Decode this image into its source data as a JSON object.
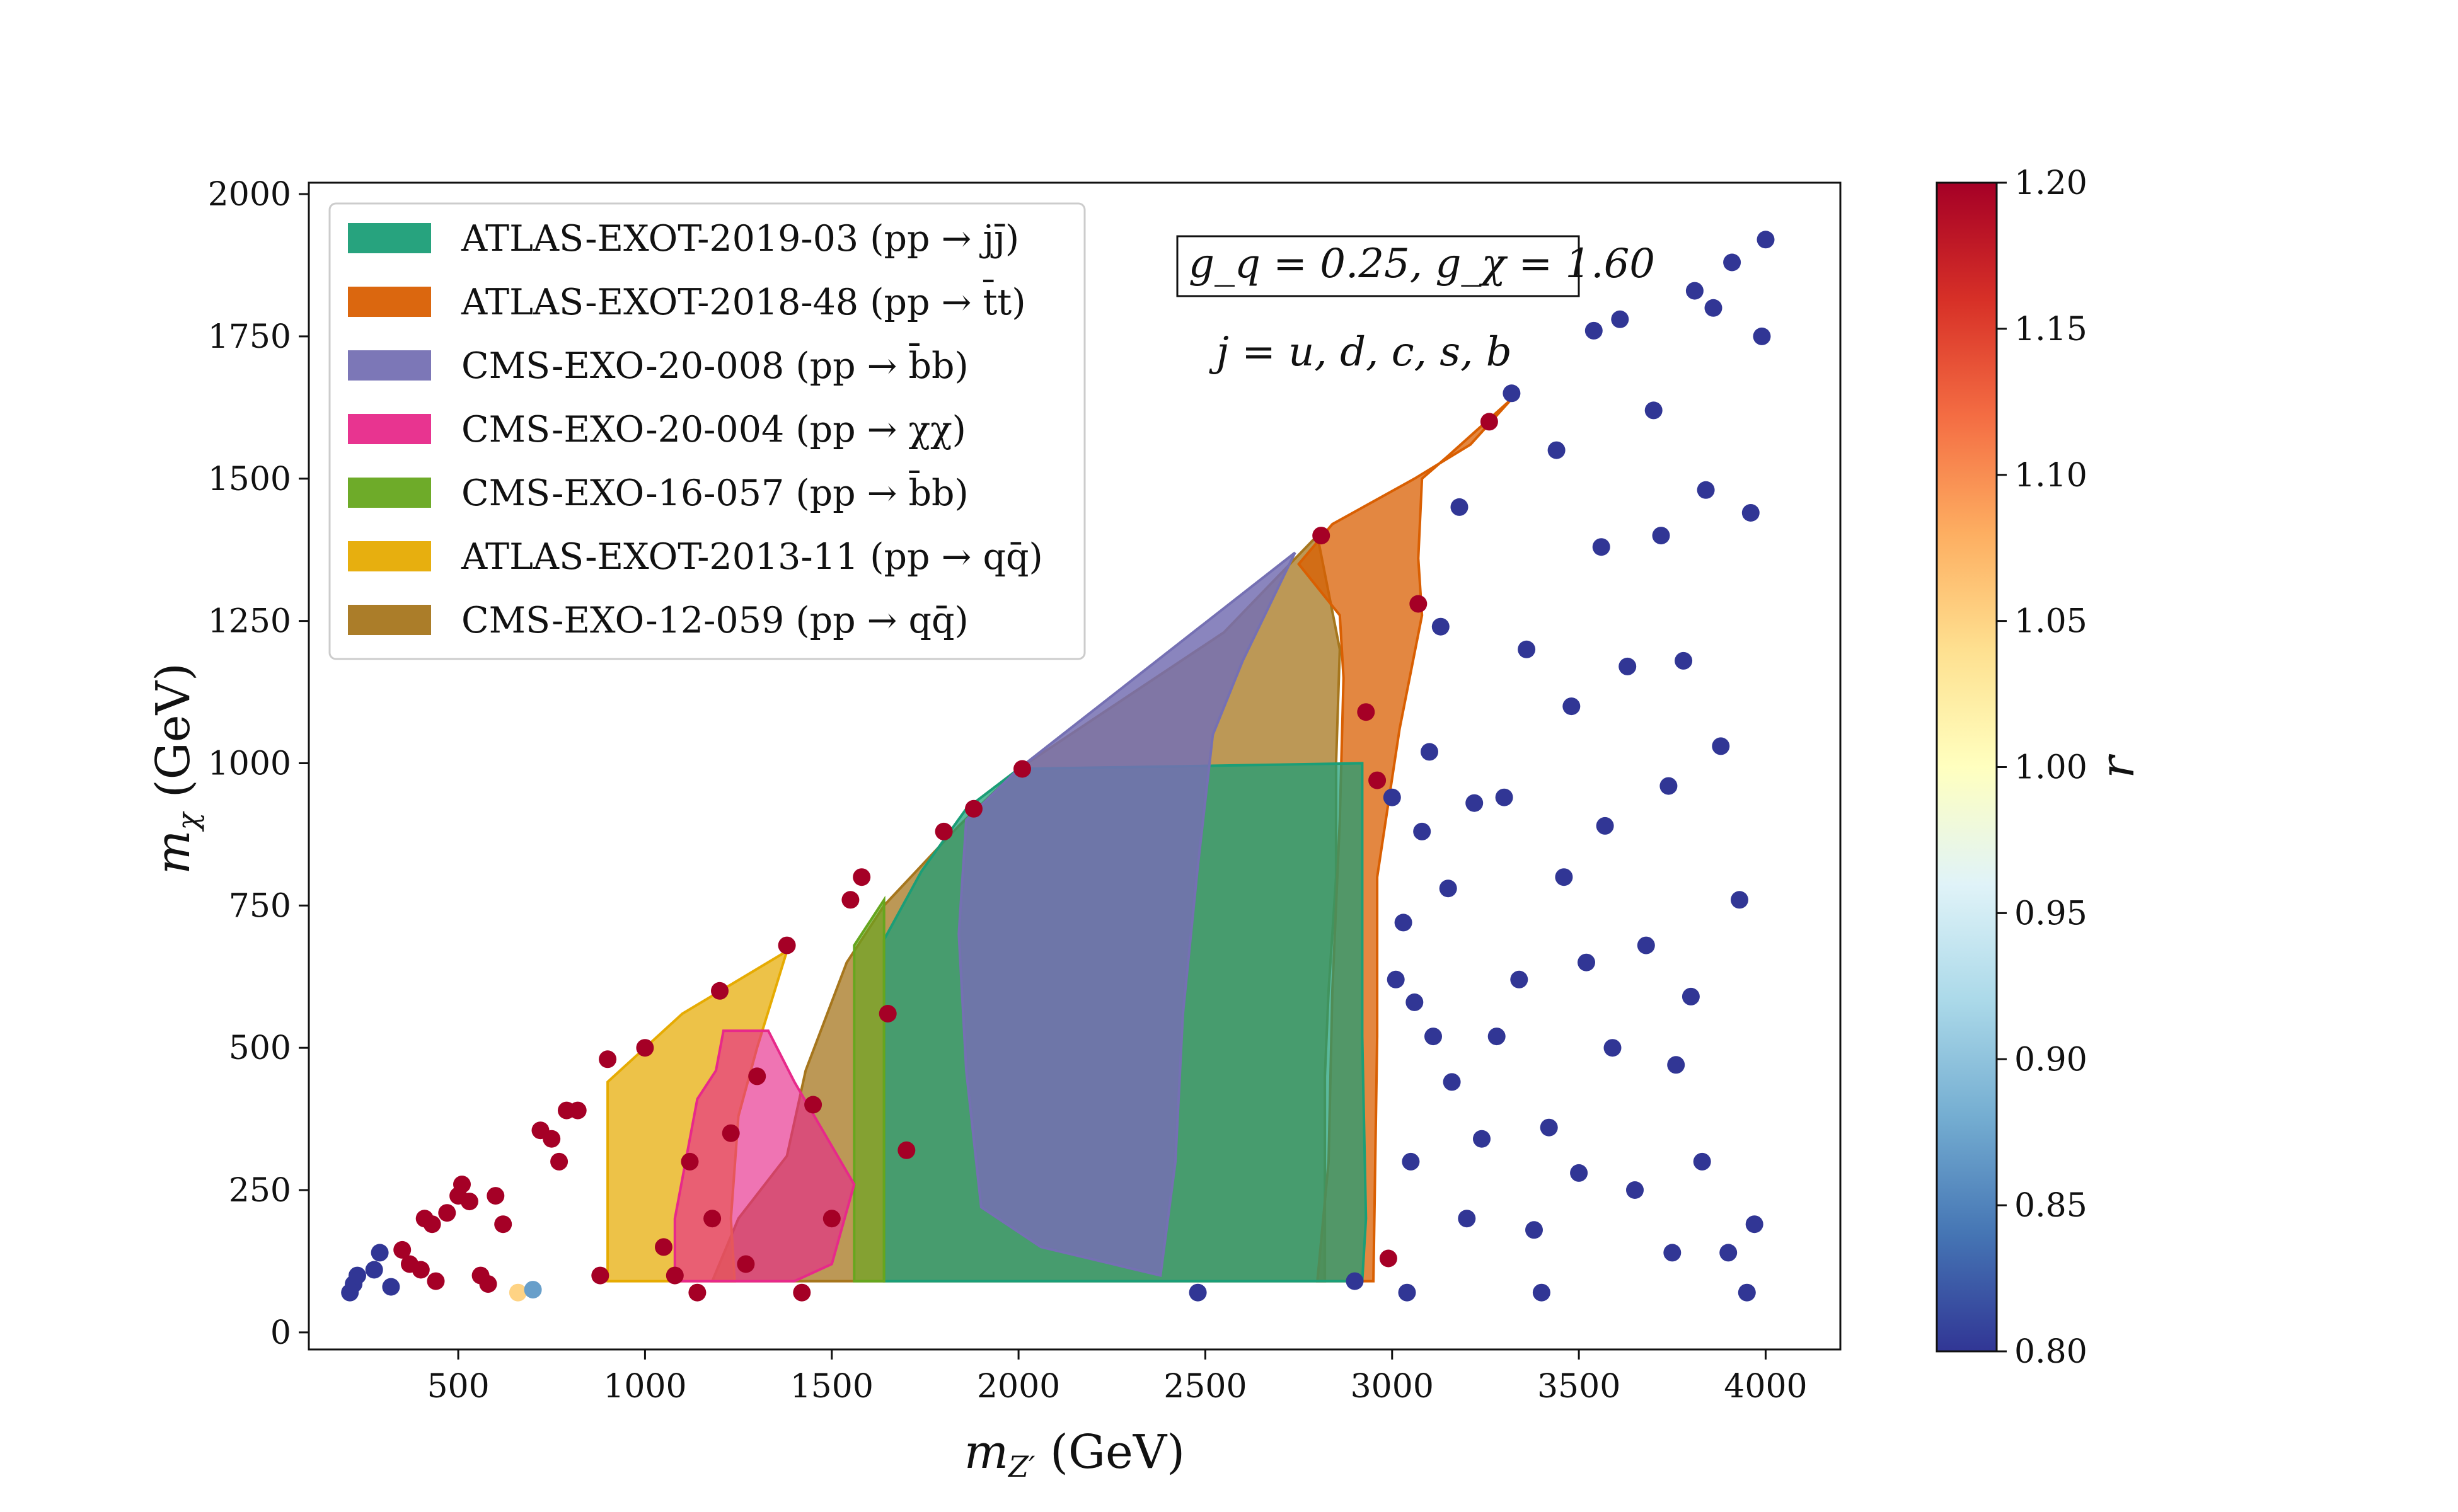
{
  "chart_data": {
    "type": "scatter",
    "xlabel": "m_Z' (GeV)",
    "ylabel": "m_χ (GeV)",
    "xlim": [
      100,
      4200
    ],
    "ylim": [
      -30,
      2020
    ],
    "x_ticks": [
      500,
      1000,
      1500,
      2000,
      2500,
      3000,
      3500,
      4000
    ],
    "y_ticks": [
      0,
      250,
      500,
      750,
      1000,
      1250,
      1500,
      1750,
      2000
    ],
    "grid": false,
    "legend_position": "top-left",
    "annotation_box": "g_q = 0.25, g_χ = 1.60",
    "annotation_text": "j = u, d, c, s, b",
    "colorbar": {
      "label": "r",
      "range": [
        0.8,
        1.2
      ],
      "ticks": [
        "0.80",
        "0.85",
        "0.90",
        "0.95",
        "1.00",
        "1.05",
        "1.10",
        "1.15",
        "1.20"
      ],
      "colormap": [
        "#313695",
        "#4575b4",
        "#74add1",
        "#abd9e9",
        "#e0f3f8",
        "#ffffbf",
        "#fee090",
        "#fdae61",
        "#f46d43",
        "#d73027",
        "#a50026"
      ]
    },
    "regions": [
      {
        "name": "CMS-EXO-12-059 (pp → qq̄)",
        "color": "#a6761d",
        "fill_opacity": 0.75,
        "polygon": [
          [
            1430,
            460
          ],
          [
            1540,
            650
          ],
          [
            1640,
            750
          ],
          [
            1840,
            890
          ],
          [
            2000,
            990
          ],
          [
            2550,
            1230
          ],
          [
            2800,
            1400
          ],
          [
            2860,
            1200
          ],
          [
            2850,
            1000
          ],
          [
            2850,
            800
          ],
          [
            2830,
            600
          ],
          [
            2820,
            450
          ],
          [
            2820,
            300
          ],
          [
            2820,
            250
          ],
          [
            2820,
            90
          ],
          [
            1180,
            90
          ],
          [
            1250,
            200
          ],
          [
            1380,
            310
          ]
        ]
      },
      {
        "name": "ATLAS-EXOT-2018-48 (pp → t̄t)",
        "color": "#d95f02",
        "fill_opacity": 0.75,
        "polygon": [
          [
            2750,
            1350
          ],
          [
            2840,
            1420
          ],
          [
            3060,
            1500
          ],
          [
            3210,
            1560
          ],
          [
            3320,
            1640
          ],
          [
            3150,
            1540
          ],
          [
            3080,
            1500
          ],
          [
            3070,
            1360
          ],
          [
            3080,
            1260
          ],
          [
            3020,
            1060
          ],
          [
            2960,
            800
          ],
          [
            2960,
            520
          ],
          [
            2950,
            90
          ],
          [
            2800,
            90
          ],
          [
            2830,
            300
          ],
          [
            2840,
            600
          ],
          [
            2860,
            900
          ],
          [
            2870,
            1150
          ],
          [
            2860,
            1260
          ]
        ]
      },
      {
        "name": "ATLAS-EXOT-2019-03 (pp → jj̄)",
        "color": "#1b9e77",
        "fill_opacity": 0.72,
        "polygon": [
          [
            1640,
            690
          ],
          [
            1740,
            810
          ],
          [
            1860,
            920
          ],
          [
            2000,
            990
          ],
          [
            2920,
            1000
          ],
          [
            2920,
            520
          ],
          [
            2930,
            200
          ],
          [
            2920,
            90
          ],
          [
            1640,
            90
          ]
        ]
      },
      {
        "name": "CMS-EXO-20-008 (pp → b̄b)",
        "color": "#7570b3",
        "fill_opacity": 0.85,
        "polygon": [
          [
            1860,
            900
          ],
          [
            2000,
            990
          ],
          [
            2740,
            1370
          ],
          [
            2600,
            1180
          ],
          [
            2520,
            1050
          ],
          [
            2480,
            820
          ],
          [
            2440,
            560
          ],
          [
            2420,
            300
          ],
          [
            2380,
            100
          ],
          [
            2060,
            150
          ],
          [
            1900,
            220
          ],
          [
            1860,
            460
          ],
          [
            1840,
            700
          ]
        ]
      },
      {
        "name": "CMS-EXO-16-057 (pp → b̄b)",
        "color": "#66a61e",
        "fill_opacity": 0.65,
        "polygon": [
          [
            1560,
            680
          ],
          [
            1640,
            760
          ],
          [
            1640,
            90
          ],
          [
            1560,
            90
          ]
        ]
      },
      {
        "name": "ATLAS-EXOT-2013-11 (pp → qq̄)",
        "color": "#e6ab02",
        "fill_opacity": 0.72,
        "polygon": [
          [
            900,
            440
          ],
          [
            1100,
            560
          ],
          [
            1380,
            670
          ],
          [
            1300,
            500
          ],
          [
            1250,
            380
          ],
          [
            1230,
            200
          ],
          [
            1240,
            90
          ],
          [
            900,
            90
          ]
        ]
      },
      {
        "name": "CMS-EXO-20-004 (pp → χχ)",
        "color": "#e7298a",
        "fill_opacity": 0.65,
        "polygon": [
          [
            1080,
            200
          ],
          [
            1140,
            410
          ],
          [
            1190,
            460
          ],
          [
            1210,
            530
          ],
          [
            1330,
            530
          ],
          [
            1400,
            440
          ],
          [
            1560,
            260
          ],
          [
            1500,
            120
          ],
          [
            1400,
            90
          ],
          [
            1080,
            90
          ]
        ]
      }
    ],
    "points": [
      {
        "x": 210,
        "y": 70,
        "r": 0.8
      },
      {
        "x": 220,
        "y": 85,
        "r": 0.8
      },
      {
        "x": 230,
        "y": 100,
        "r": 0.8
      },
      {
        "x": 275,
        "y": 110,
        "r": 0.8
      },
      {
        "x": 290,
        "y": 140,
        "r": 0.8
      },
      {
        "x": 320,
        "y": 80,
        "r": 0.8
      },
      {
        "x": 350,
        "y": 145,
        "r": 1.2
      },
      {
        "x": 370,
        "y": 120,
        "r": 1.2
      },
      {
        "x": 400,
        "y": 110,
        "r": 1.2
      },
      {
        "x": 410,
        "y": 200,
        "r": 1.2
      },
      {
        "x": 430,
        "y": 190,
        "r": 1.2
      },
      {
        "x": 440,
        "y": 90,
        "r": 1.2
      },
      {
        "x": 470,
        "y": 210,
        "r": 1.2
      },
      {
        "x": 500,
        "y": 240,
        "r": 1.2
      },
      {
        "x": 510,
        "y": 260,
        "r": 1.2
      },
      {
        "x": 530,
        "y": 230,
        "r": 1.2
      },
      {
        "x": 560,
        "y": 100,
        "r": 1.2
      },
      {
        "x": 580,
        "y": 85,
        "r": 1.2
      },
      {
        "x": 600,
        "y": 240,
        "r": 1.2
      },
      {
        "x": 620,
        "y": 190,
        "r": 1.2
      },
      {
        "x": 660,
        "y": 70,
        "r": 1.05
      },
      {
        "x": 700,
        "y": 75,
        "r": 0.87
      },
      {
        "x": 720,
        "y": 355,
        "r": 1.2
      },
      {
        "x": 750,
        "y": 340,
        "r": 1.2
      },
      {
        "x": 770,
        "y": 300,
        "r": 1.2
      },
      {
        "x": 790,
        "y": 390,
        "r": 1.2
      },
      {
        "x": 820,
        "y": 390,
        "r": 1.2
      },
      {
        "x": 880,
        "y": 100,
        "r": 1.2
      },
      {
        "x": 900,
        "y": 480,
        "r": 1.2
      },
      {
        "x": 1000,
        "y": 500,
        "r": 1.2
      },
      {
        "x": 1050,
        "y": 150,
        "r": 1.2
      },
      {
        "x": 1080,
        "y": 100,
        "r": 1.2
      },
      {
        "x": 1120,
        "y": 300,
        "r": 1.2
      },
      {
        "x": 1140,
        "y": 70,
        "r": 1.2
      },
      {
        "x": 1180,
        "y": 200,
        "r": 1.2
      },
      {
        "x": 1200,
        "y": 600,
        "r": 1.2
      },
      {
        "x": 1230,
        "y": 350,
        "r": 1.2
      },
      {
        "x": 1270,
        "y": 120,
        "r": 1.2
      },
      {
        "x": 1300,
        "y": 450,
        "r": 1.2
      },
      {
        "x": 1380,
        "y": 680,
        "r": 1.2
      },
      {
        "x": 1420,
        "y": 70,
        "r": 1.2
      },
      {
        "x": 1450,
        "y": 400,
        "r": 1.2
      },
      {
        "x": 1500,
        "y": 200,
        "r": 1.2
      },
      {
        "x": 1550,
        "y": 760,
        "r": 1.2
      },
      {
        "x": 1580,
        "y": 800,
        "r": 1.2
      },
      {
        "x": 1650,
        "y": 560,
        "r": 1.2
      },
      {
        "x": 1700,
        "y": 320,
        "r": 1.2
      },
      {
        "x": 1800,
        "y": 880,
        "r": 1.2
      },
      {
        "x": 1880,
        "y": 920,
        "r": 1.2
      },
      {
        "x": 2010,
        "y": 990,
        "r": 1.2
      },
      {
        "x": 2480,
        "y": 70,
        "r": 0.8
      },
      {
        "x": 2810,
        "y": 1400,
        "r": 1.2
      },
      {
        "x": 2900,
        "y": 90,
        "r": 0.8
      },
      {
        "x": 2930,
        "y": 1090,
        "r": 1.2
      },
      {
        "x": 2960,
        "y": 970,
        "r": 1.2
      },
      {
        "x": 2990,
        "y": 130,
        "r": 1.2
      },
      {
        "x": 3000,
        "y": 940,
        "r": 0.8
      },
      {
        "x": 3010,
        "y": 620,
        "r": 0.8
      },
      {
        "x": 3030,
        "y": 720,
        "r": 0.8
      },
      {
        "x": 3040,
        "y": 70,
        "r": 0.8
      },
      {
        "x": 3050,
        "y": 300,
        "r": 0.8
      },
      {
        "x": 3060,
        "y": 580,
        "r": 0.8
      },
      {
        "x": 3070,
        "y": 1280,
        "r": 1.2
      },
      {
        "x": 3080,
        "y": 880,
        "r": 0.8
      },
      {
        "x": 3100,
        "y": 1020,
        "r": 0.8
      },
      {
        "x": 3110,
        "y": 520,
        "r": 0.8
      },
      {
        "x": 3130,
        "y": 1240,
        "r": 0.8
      },
      {
        "x": 3150,
        "y": 780,
        "r": 0.8
      },
      {
        "x": 3160,
        "y": 440,
        "r": 0.8
      },
      {
        "x": 3180,
        "y": 1450,
        "r": 0.8
      },
      {
        "x": 3200,
        "y": 200,
        "r": 0.8
      },
      {
        "x": 3220,
        "y": 930,
        "r": 0.8
      },
      {
        "x": 3240,
        "y": 340,
        "r": 0.8
      },
      {
        "x": 3260,
        "y": 1600,
        "r": 1.2
      },
      {
        "x": 3280,
        "y": 520,
        "r": 0.8
      },
      {
        "x": 3300,
        "y": 940,
        "r": 0.8
      },
      {
        "x": 3320,
        "y": 1650,
        "r": 0.8
      },
      {
        "x": 3340,
        "y": 620,
        "r": 0.8
      },
      {
        "x": 3360,
        "y": 1200,
        "r": 0.8
      },
      {
        "x": 3380,
        "y": 180,
        "r": 0.8
      },
      {
        "x": 3400,
        "y": 70,
        "r": 0.8
      },
      {
        "x": 3420,
        "y": 360,
        "r": 0.8
      },
      {
        "x": 3440,
        "y": 1550,
        "r": 0.8
      },
      {
        "x": 3460,
        "y": 800,
        "r": 0.8
      },
      {
        "x": 3480,
        "y": 1100,
        "r": 0.8
      },
      {
        "x": 3500,
        "y": 280,
        "r": 0.8
      },
      {
        "x": 3520,
        "y": 650,
        "r": 0.8
      },
      {
        "x": 3540,
        "y": 1760,
        "r": 0.8
      },
      {
        "x": 3560,
        "y": 1380,
        "r": 0.8
      },
      {
        "x": 3570,
        "y": 890,
        "r": 0.8
      },
      {
        "x": 3590,
        "y": 500,
        "r": 0.8
      },
      {
        "x": 3610,
        "y": 1780,
        "r": 0.8
      },
      {
        "x": 3630,
        "y": 1170,
        "r": 0.8
      },
      {
        "x": 3650,
        "y": 250,
        "r": 0.8
      },
      {
        "x": 3680,
        "y": 680,
        "r": 0.8
      },
      {
        "x": 3700,
        "y": 1620,
        "r": 0.8
      },
      {
        "x": 3720,
        "y": 1400,
        "r": 0.8
      },
      {
        "x": 3740,
        "y": 960,
        "r": 0.8
      },
      {
        "x": 3750,
        "y": 140,
        "r": 0.8
      },
      {
        "x": 3760,
        "y": 470,
        "r": 0.8
      },
      {
        "x": 3780,
        "y": 1180,
        "r": 0.8
      },
      {
        "x": 3800,
        "y": 590,
        "r": 0.8
      },
      {
        "x": 3810,
        "y": 1830,
        "r": 0.8
      },
      {
        "x": 3830,
        "y": 300,
        "r": 0.8
      },
      {
        "x": 3840,
        "y": 1480,
        "r": 0.8
      },
      {
        "x": 3860,
        "y": 1800,
        "r": 0.8
      },
      {
        "x": 3880,
        "y": 1030,
        "r": 0.8
      },
      {
        "x": 3900,
        "y": 140,
        "r": 0.8
      },
      {
        "x": 3910,
        "y": 1880,
        "r": 0.8
      },
      {
        "x": 3930,
        "y": 760,
        "r": 0.8
      },
      {
        "x": 3950,
        "y": 70,
        "r": 0.8
      },
      {
        "x": 3960,
        "y": 1440,
        "r": 0.8
      },
      {
        "x": 3970,
        "y": 190,
        "r": 0.8
      },
      {
        "x": 3990,
        "y": 1750,
        "r": 0.8
      },
      {
        "x": 4000,
        "y": 1920,
        "r": 0.8
      }
    ]
  }
}
